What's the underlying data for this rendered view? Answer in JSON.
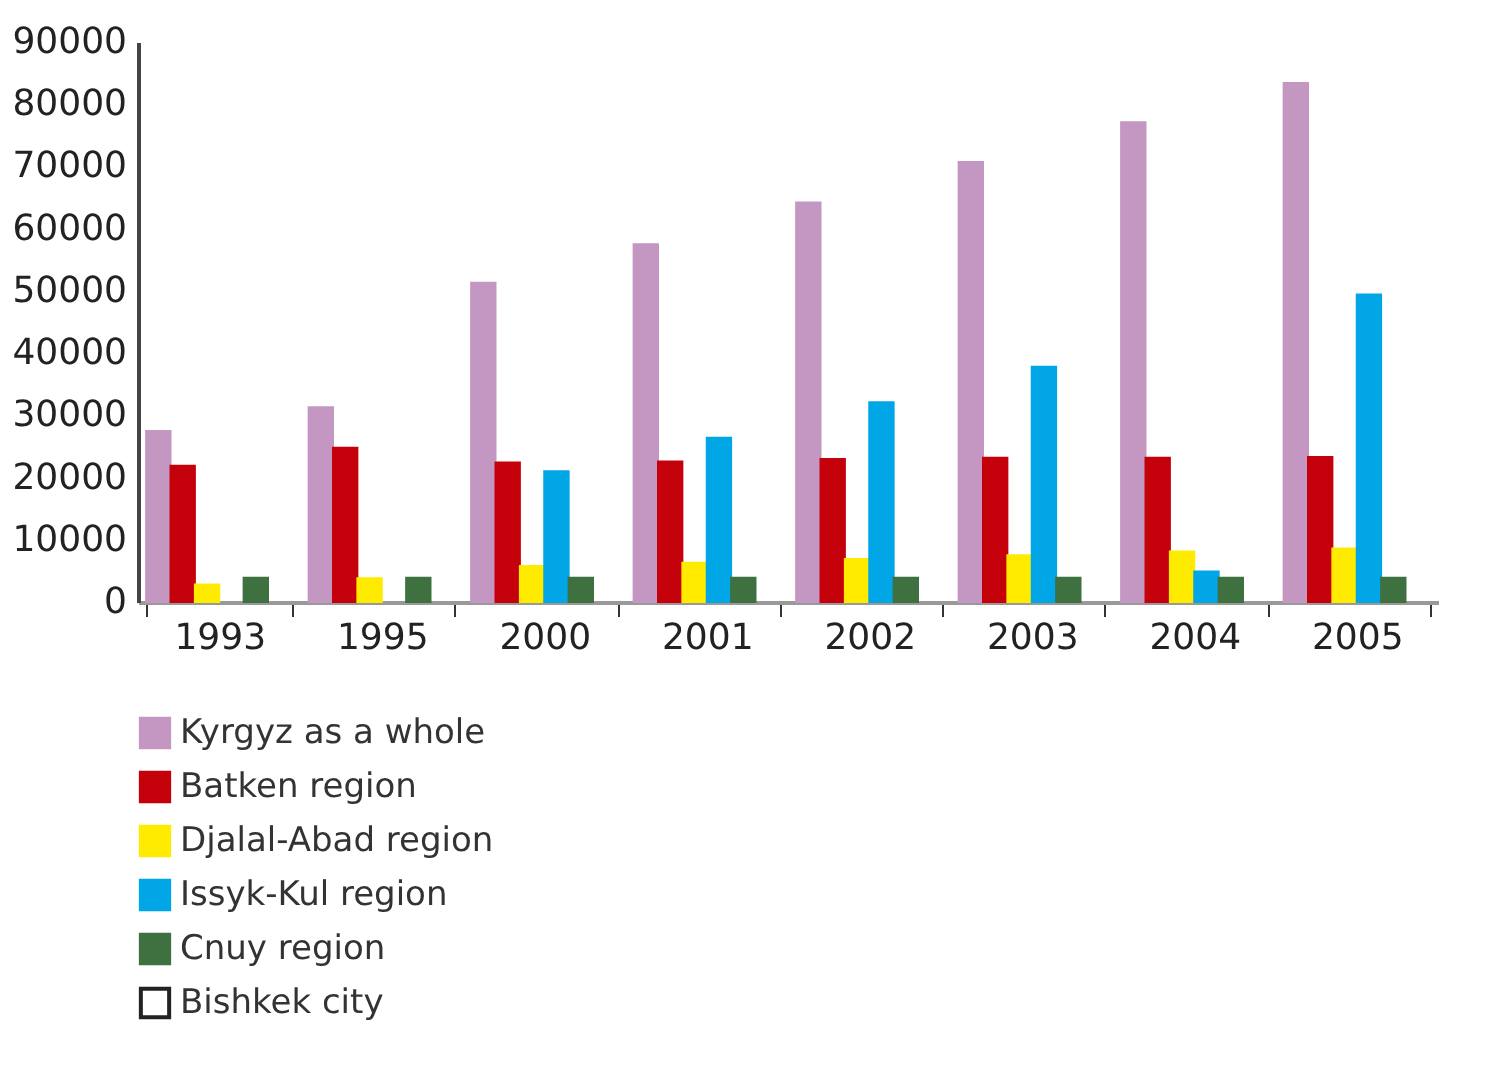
{
  "chart_data": {
    "type": "bar",
    "categories": [
      "1993",
      "1995",
      "2000",
      "2001",
      "2002",
      "2003",
      "2004",
      "2005"
    ],
    "series": [
      {
        "name": "Kyrgyz as a whole",
        "color": "#c497c2",
        "values": [
          27500,
          31300,
          51300,
          57500,
          64200,
          70700,
          77100,
          83400
        ]
      },
      {
        "name": "Batken region",
        "color": "#c4000b",
        "values": [
          21900,
          24800,
          22400,
          22600,
          23000,
          23200,
          23200,
          23300
        ]
      },
      {
        "name": "Djalal-Abad region",
        "color": "#ffeb00",
        "values": [
          2800,
          3800,
          5800,
          6300,
          6900,
          7500,
          8100,
          8600
        ]
      },
      {
        "name": "Issyk-Kul region",
        "color": "#00a6e6",
        "values": [
          null,
          null,
          21000,
          26400,
          32100,
          37800,
          4900,
          49400
        ]
      },
      {
        "name": "Cnuy region",
        "color": "#3f7140",
        "values": [
          3900,
          3900,
          3900,
          3900,
          3900,
          3900,
          3900,
          3900
        ]
      },
      {
        "name": "Bishkek city",
        "color": "#ffffff",
        "values": [
          null,
          null,
          null,
          null,
          null,
          null,
          null,
          null
        ]
      }
    ],
    "ylim": [
      0,
      90000
    ],
    "yticks": [
      0,
      10000,
      20000,
      30000,
      40000,
      50000,
      60000,
      70000,
      80000,
      90000
    ],
    "grid": false,
    "legend": "bottom left"
  }
}
